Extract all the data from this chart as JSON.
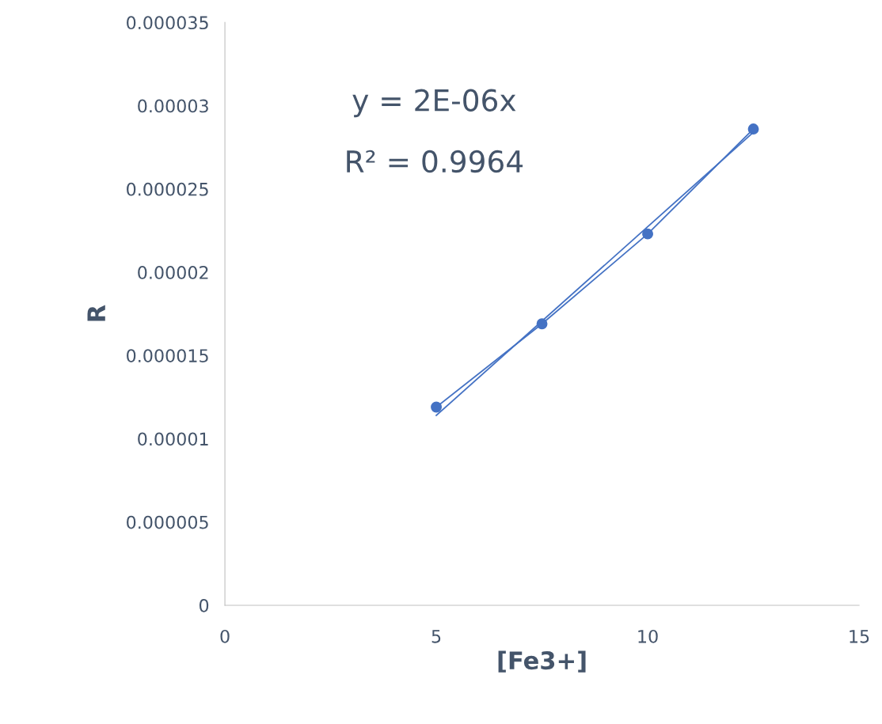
{
  "chart_data": {
    "type": "line",
    "xlabel": "[Fe3+]",
    "ylabel": "R",
    "xlim": [
      0,
      15
    ],
    "xticks": [
      0,
      5,
      10,
      15
    ],
    "ylim": [
      0,
      3.5e-05
    ],
    "yticks": [
      0,
      {
        "value": 5e-06,
        "label": "0.000005"
      },
      {
        "value": 1e-05,
        "label": "0.00001"
      },
      {
        "value": 1.5e-05,
        "label": "0.000015"
      },
      {
        "value": 2e-05,
        "label": "0.00002"
      },
      {
        "value": 2.5e-05,
        "label": "0.000025"
      },
      {
        "value": 3e-05,
        "label": "0.00003"
      },
      {
        "value": 3.5e-05,
        "label": "0.000035"
      }
    ],
    "grid": false,
    "legend": false,
    "series": [
      {
        "marker": "circle",
        "color": "#4472c4",
        "x": [
          5,
          7.5,
          10,
          12.5
        ],
        "values": [
          1.19e-05,
          1.69e-05,
          2.23e-05,
          2.86e-05
        ]
      },
      {
        "marker": "none",
        "color": "#4472c4",
        "x": [
          5,
          12.5
        ],
        "values": [
          1.14e-05,
          2.84e-05
        ]
      }
    ],
    "annotations": [
      "y = 2E-06x",
      "R² = 0.9964"
    ]
  }
}
